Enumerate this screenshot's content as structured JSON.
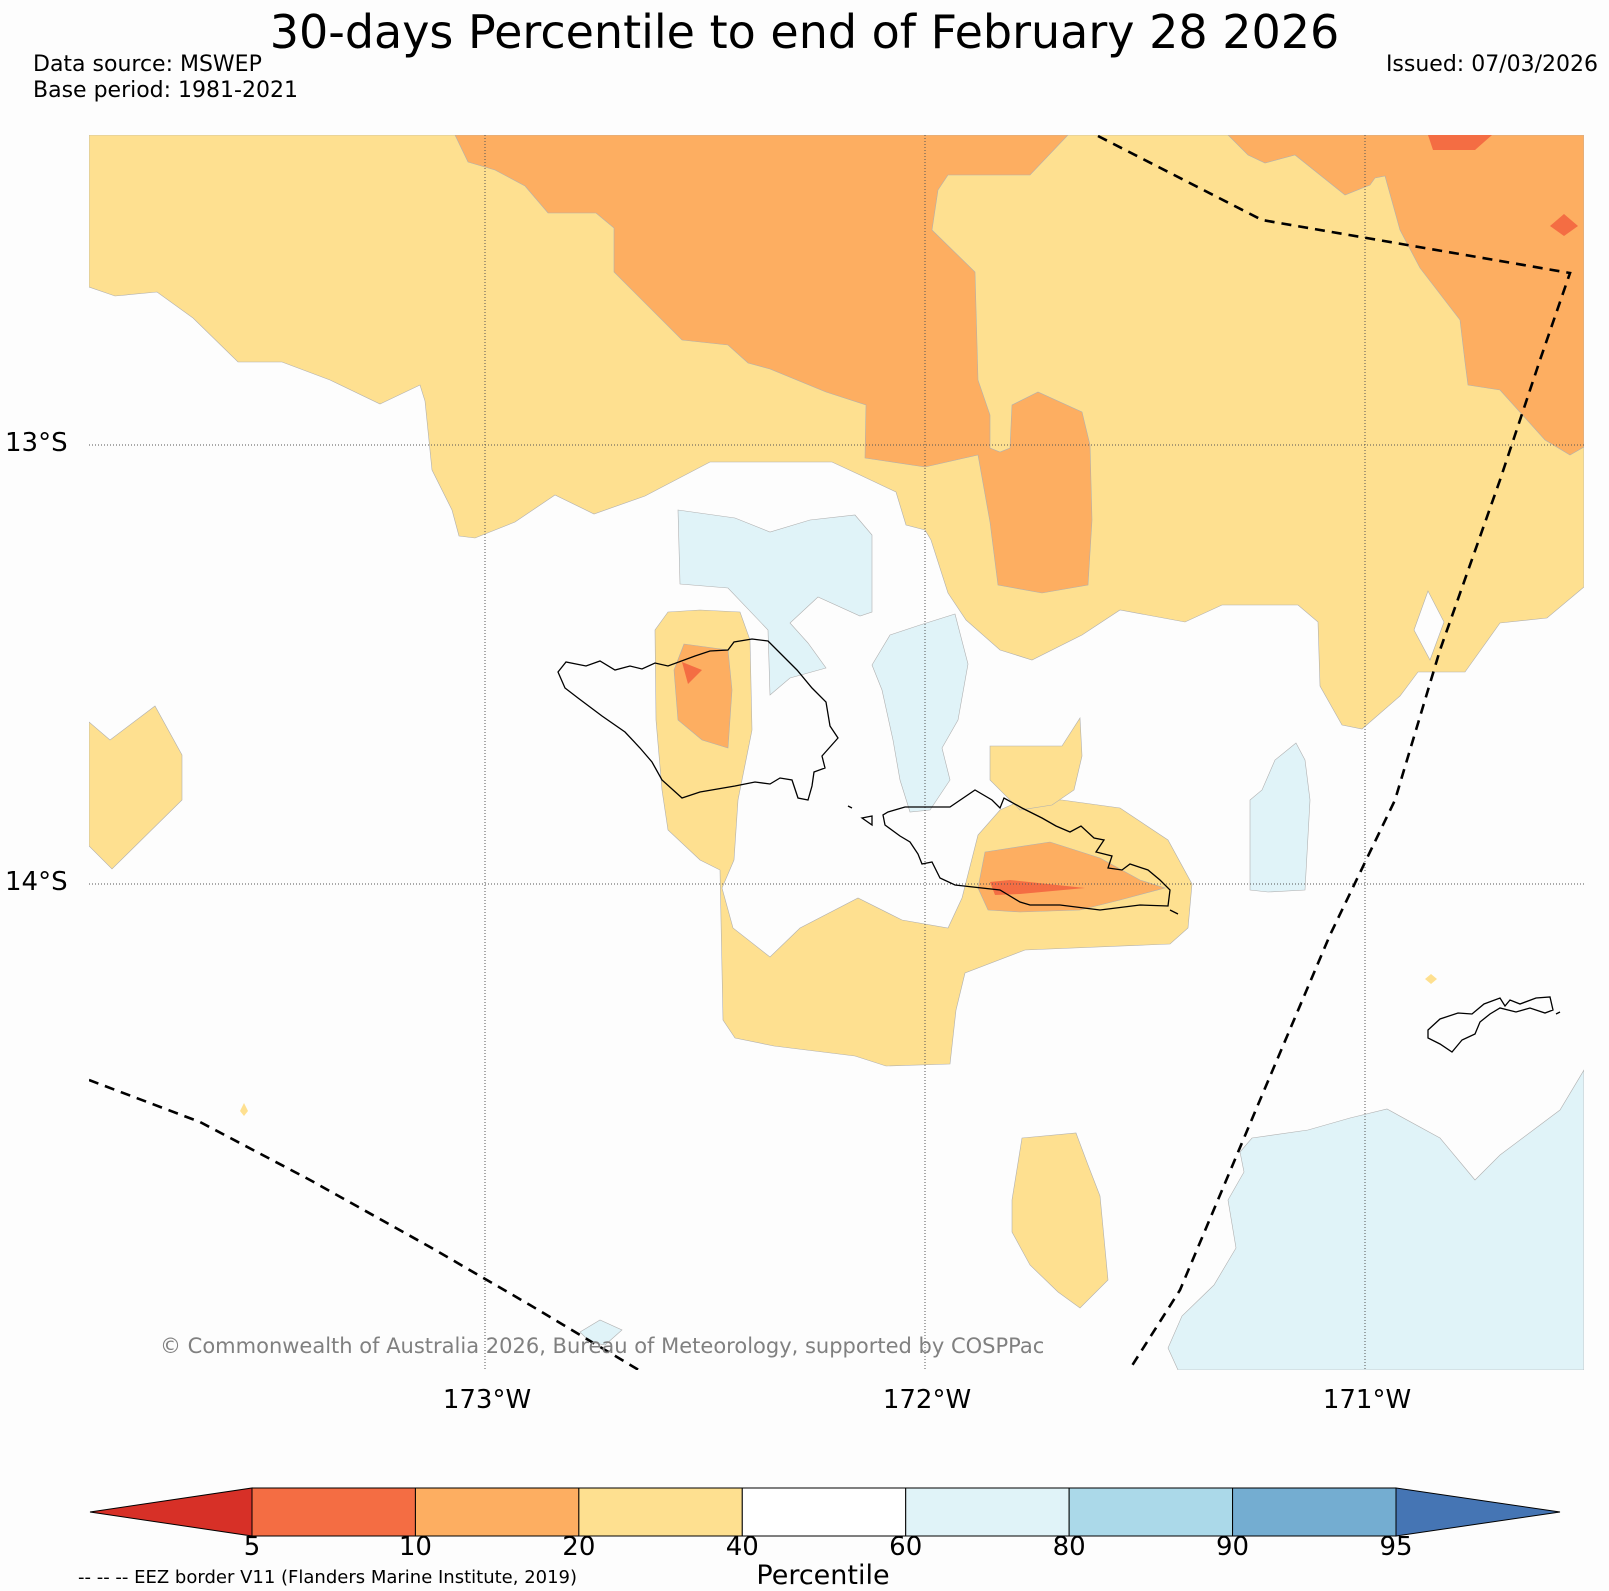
{
  "header": {
    "title": "30-days Percentile to end of February 28 2026",
    "data_source": "Data source: MSWEP",
    "base_period": "Base period: 1981-2021",
    "issued": "Issued: 07/03/2026"
  },
  "map": {
    "lat_labels": [
      "13°S",
      "14°S"
    ],
    "lon_labels": [
      "173°W",
      "172°W",
      "171°W"
    ],
    "copyright": "© Commonwealth of Australia 2026, Bureau of Meteorology, supported by COSPPac",
    "colors": {
      "p5_10": "#f46d43",
      "p10_20": "#fdae61",
      "p20_40": "#fee090",
      "p40_60": "#fdfdfd",
      "p60_80": "#e0f3f8"
    }
  },
  "colorbar": {
    "ticks": [
      "5",
      "10",
      "20",
      "40",
      "60",
      "80",
      "90",
      "95"
    ],
    "colors": [
      "#d73027",
      "#f46d43",
      "#fdae61",
      "#fee090",
      "#ffffff",
      "#e0f3f8",
      "#abd9e9",
      "#74add1",
      "#4575b4"
    ],
    "title": "Percentile"
  },
  "legend": {
    "eez_note": "-- -- -- EEZ border V11 (Flanders Marine Institute, 2019)"
  }
}
